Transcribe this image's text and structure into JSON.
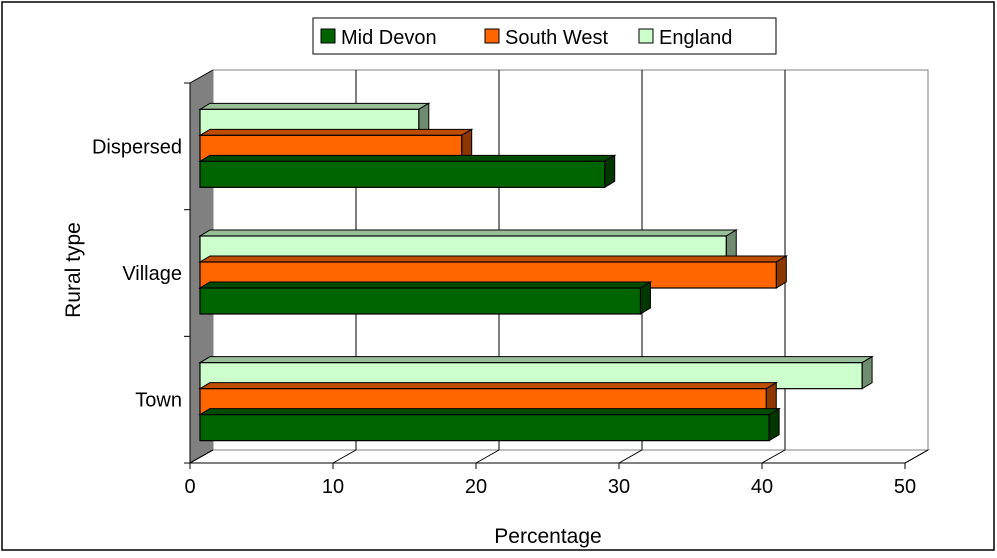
{
  "chart_data": {
    "type": "bar",
    "orientation": "horizontal",
    "three_d": true,
    "categories": [
      "Dispersed",
      "Village",
      "Town"
    ],
    "series": [
      {
        "name": "Mid Devon",
        "values": [
          29,
          31.5,
          40.5
        ],
        "color": "#006400"
      },
      {
        "name": "South West",
        "values": [
          19,
          41,
          40.3
        ],
        "color": "#ff6600"
      },
      {
        "name": "England",
        "values": [
          16,
          37.5,
          47
        ],
        "color": "#ccffcc"
      }
    ],
    "xlabel": "Percentage",
    "ylabel": "Rural type",
    "xlim": [
      0,
      50
    ],
    "xticks": [
      "0",
      "10",
      "20",
      "30",
      "40",
      "50"
    ],
    "grid": true,
    "legend_position": "top"
  }
}
